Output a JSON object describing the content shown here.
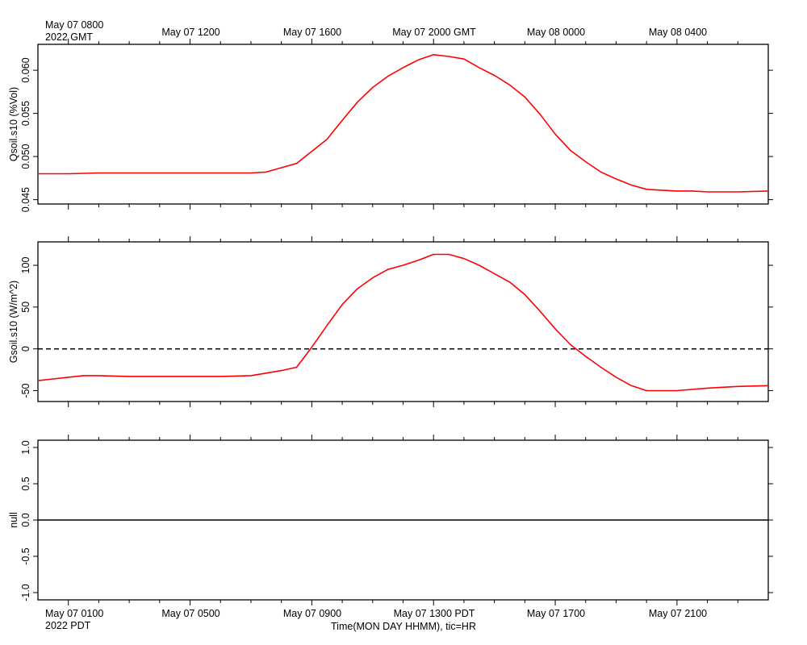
{
  "top_axis": {
    "first_label": "May 07 0800",
    "first_sublabel": "2022 GMT",
    "labels": [
      "May 07 1200",
      "May 07 1600",
      "May 07 2000 GMT",
      "May 08 0000",
      "May 08 0400"
    ]
  },
  "bottom_axis": {
    "first_label": "May 07 0100",
    "first_sublabel": "2022 PDT",
    "labels": [
      "May 07 0500",
      "May 07 0900",
      "May 07 1300 PDT",
      "May 07 1700",
      "May 07 2100"
    ],
    "title": "Time(MON DAY HHMM), tic=HR"
  },
  "colors": {
    "series": "#ff0000",
    "axis": "#000000",
    "reference": "#000000"
  },
  "chart_data": [
    {
      "type": "line",
      "ylabel": "Qsoil.s10 (%Vol)",
      "ylim": [
        0.0445,
        0.063
      ],
      "yticks": [
        "0.045",
        "0.050",
        "0.055",
        "0.060"
      ],
      "x_units": "hours from May 07 0000 PDT",
      "xlim": [
        0,
        24
      ],
      "series": [
        {
          "x": [
            0,
            1,
            2,
            3,
            4,
            5,
            6,
            7,
            7.5,
            8,
            8.5,
            9,
            9.5,
            10,
            10.5,
            11,
            11.5,
            12,
            12.5,
            13,
            13.5,
            14,
            14.5,
            15,
            15.5,
            16,
            16.5,
            17,
            17.5,
            18,
            18.5,
            19,
            19.5,
            20,
            20.5,
            21,
            21.5,
            22,
            23,
            24
          ],
          "y": [
            0.048,
            0.048,
            0.0481,
            0.0481,
            0.0481,
            0.0481,
            0.0481,
            0.0481,
            0.0482,
            0.0487,
            0.0492,
            0.0506,
            0.052,
            0.0542,
            0.0563,
            0.058,
            0.0593,
            0.0603,
            0.0612,
            0.0618,
            0.0616,
            0.0613,
            0.0603,
            0.0594,
            0.0583,
            0.0569,
            0.0549,
            0.0526,
            0.0507,
            0.0494,
            0.0482,
            0.0474,
            0.0467,
            0.0462,
            0.0461,
            0.046,
            0.046,
            0.0459,
            0.0459,
            0.046
          ]
        }
      ]
    },
    {
      "type": "line",
      "ylabel": "Gsoil.s10 (W/m^2)",
      "ylim": [
        -63,
        128
      ],
      "yticks": [
        "-50",
        "0",
        "50",
        "100"
      ],
      "reference_line": 0,
      "x_units": "hours from May 07 0000 PDT",
      "xlim": [
        0,
        24
      ],
      "series": [
        {
          "x": [
            0,
            0.5,
            1,
            1.5,
            2,
            3,
            4,
            5,
            6,
            7,
            7.5,
            8,
            8.5,
            8.75,
            9,
            9.5,
            10,
            10.5,
            11,
            11.5,
            12,
            12.5,
            13,
            13.5,
            14,
            14.5,
            15,
            15.5,
            16,
            16.5,
            17,
            17.5,
            18,
            18.5,
            19,
            19.5,
            20,
            21,
            22,
            23,
            24
          ],
          "y": [
            -38,
            -36,
            -34,
            -32,
            -32,
            -33,
            -33,
            -33,
            -33,
            -32,
            -29,
            -26,
            -22,
            -10,
            2,
            28,
            53,
            72,
            85,
            95,
            100,
            106,
            113,
            113,
            108,
            100,
            90,
            80,
            65,
            45,
            24,
            5,
            -9,
            -22,
            -34,
            -44,
            -50,
            -50,
            -47,
            -45,
            -44
          ]
        }
      ]
    },
    {
      "type": "line",
      "ylabel": "null",
      "ylim": [
        -1.1,
        1.1
      ],
      "yticks": [
        "-1.0",
        "-0.5",
        "0.0",
        "0.5",
        "1.0"
      ],
      "reference_line": 0,
      "x_units": "hours from May 07 0000 PDT",
      "xlim": [
        0,
        24
      ],
      "series": []
    }
  ]
}
